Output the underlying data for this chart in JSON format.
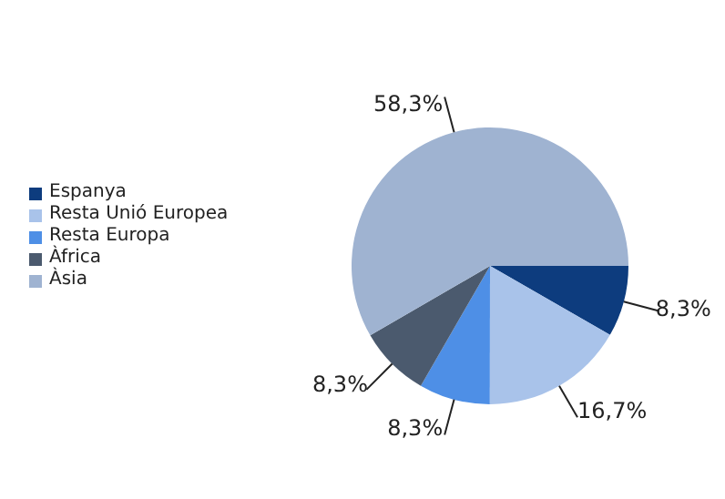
{
  "chart_data": {
    "type": "pie",
    "categories": [
      "Espanya",
      "Resta Unió Europea",
      "Resta Europa",
      "Àfrica",
      "Àsia"
    ],
    "values": [
      8.3,
      16.7,
      8.3,
      8.3,
      58.3
    ],
    "value_labels": [
      "8,3%",
      "16,7%",
      "8,3%",
      "8,3%",
      "58,3%"
    ],
    "colors": [
      "#0d3c7e",
      "#a9c3ea",
      "#4e8fe6",
      "#4b5a6e",
      "#9fb3d1"
    ],
    "legend": "left"
  }
}
